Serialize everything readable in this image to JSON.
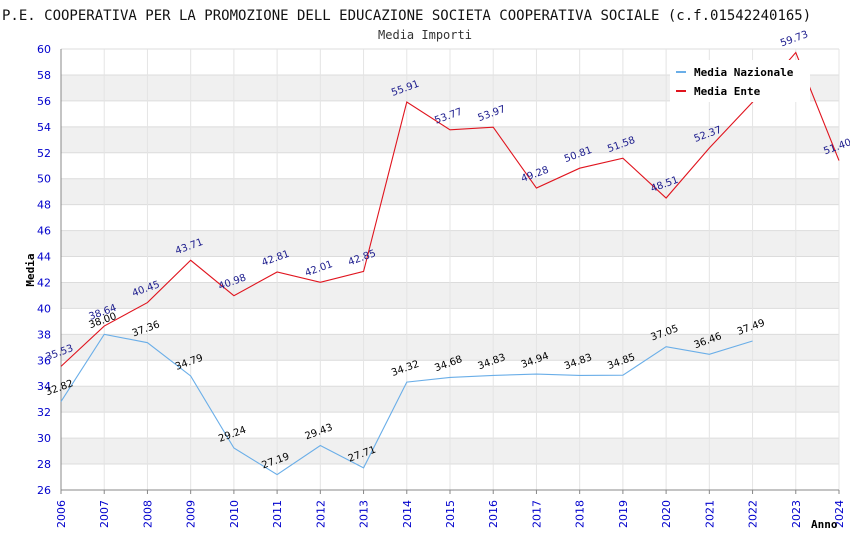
{
  "chart_data": {
    "type": "line",
    "title": "P.E. COOPERATIVA PER LA PROMOZIONE DELL EDUCAZIONE SOCIETA COOPERATIVA SOCIALE (c.f.01542240165)",
    "subtitle": "Media Importi",
    "xlabel": "Anno",
    "ylabel": "Media",
    "ylim": [
      26,
      60
    ],
    "ytick_step": 2,
    "grid": true,
    "legend_position": "top-right",
    "categories": [
      "2006",
      "2007",
      "2008",
      "2009",
      "2010",
      "2011",
      "2012",
      "2013",
      "2014",
      "2015",
      "2016",
      "2017",
      "2018",
      "2019",
      "2020",
      "2021",
      "2022",
      "2023",
      "2024"
    ],
    "series": [
      {
        "name": "Media Nazionale",
        "color": "#6aaee8",
        "label_color": "#000000",
        "values": [
          32.82,
          38.0,
          37.36,
          34.79,
          29.24,
          27.19,
          29.43,
          27.71,
          34.32,
          34.68,
          34.83,
          34.94,
          34.83,
          34.85,
          37.05,
          36.46,
          37.49,
          null,
          null
        ],
        "labels": [
          "32.82",
          "38.00",
          "37.36",
          "34.79",
          "29.24",
          "27.19",
          "29.43",
          "27.71",
          "34.32",
          "34.68",
          "34.83",
          "34.94",
          "34.83",
          "34.85",
          "37.05",
          "36.46",
          "37.49",
          null,
          null
        ]
      },
      {
        "name": "Media Ente",
        "color": "#e0141e",
        "label_color": "#1a1a8c",
        "values": [
          35.53,
          38.64,
          40.45,
          43.71,
          40.98,
          42.81,
          42.01,
          42.85,
          55.91,
          53.77,
          53.97,
          49.28,
          50.81,
          51.58,
          48.51,
          52.37,
          55.9,
          59.73,
          51.4
        ],
        "labels": [
          "35.53",
          "38.64",
          "40.45",
          "43.71",
          "40.98",
          "42.81",
          "42.01",
          "42.85",
          "55.91",
          "53.77",
          "53.97",
          "49.28",
          "50.81",
          "51.58",
          "48.51",
          "52.37",
          null,
          "59.73",
          "51.40"
        ]
      }
    ]
  }
}
